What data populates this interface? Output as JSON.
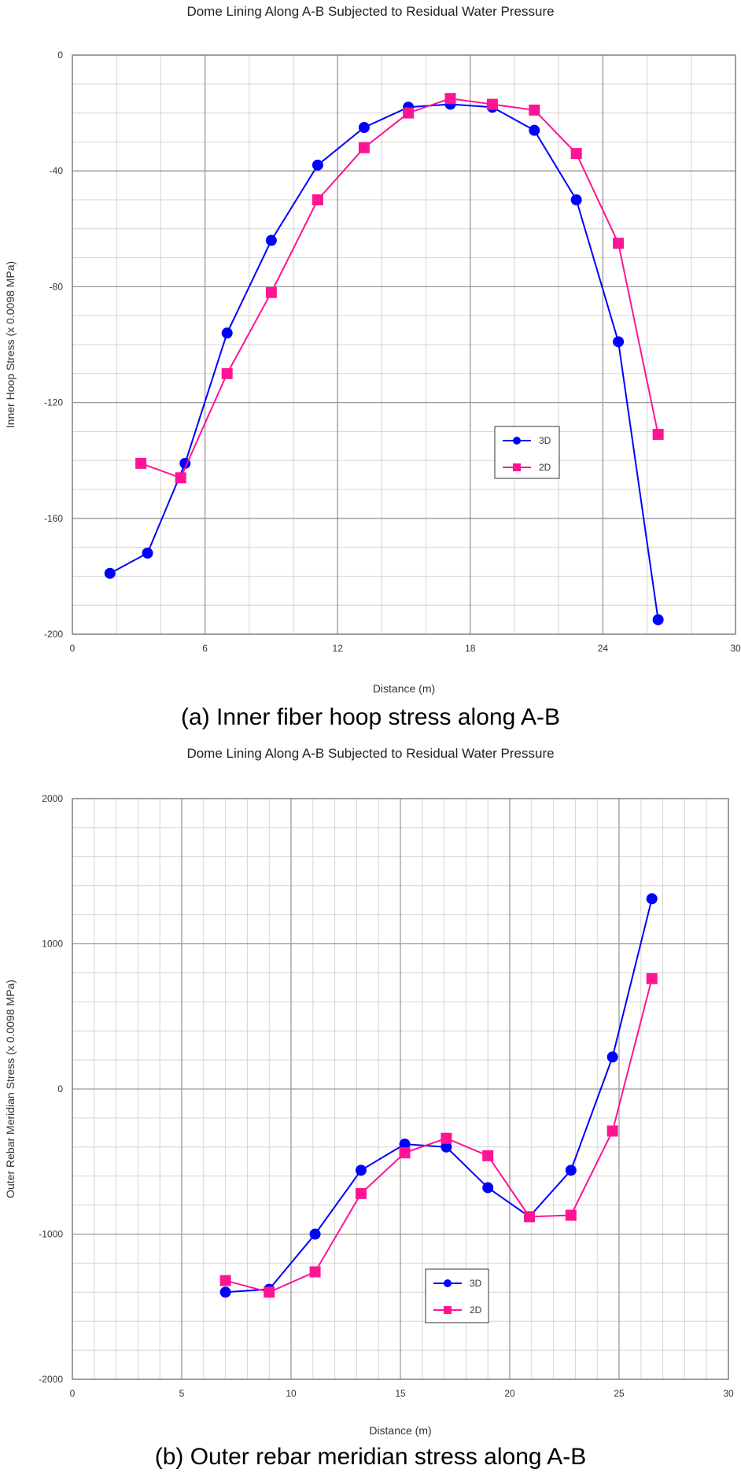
{
  "chart_data": [
    {
      "type": "line",
      "title": "Dome Lining Along A-B  Subjected to Residual Water Pressure",
      "xlabel": "Distance (m)",
      "ylabel": "Inner Hoop Stress (x 0.0098 MPa)",
      "xlim": [
        0,
        30
      ],
      "ylim": [
        -200,
        0
      ],
      "x_ticks": [
        0,
        6,
        12,
        18,
        24,
        30
      ],
      "y_ticks": [
        0,
        -40,
        -80,
        -120,
        -160,
        -200
      ],
      "grid": true,
      "legend_position": "center-right",
      "caption": "(a) Inner fiber hoop stress along A-B",
      "series": [
        {
          "name": "3D",
          "color": "#0000ff",
          "marker": "circle",
          "x": [
            1.7,
            3.4,
            5.1,
            7.0,
            9.0,
            11.1,
            13.2,
            15.2,
            17.1,
            19.0,
            20.9,
            22.8,
            24.7,
            26.5
          ],
          "y": [
            -179,
            -172,
            -141,
            -96,
            -64,
            -38,
            -25,
            -18,
            -17,
            -18,
            -26,
            -50,
            -99,
            -195
          ]
        },
        {
          "name": "2D",
          "color": "#ff1493",
          "marker": "square",
          "x": [
            3.1,
            4.9,
            7.0,
            9.0,
            11.1,
            13.2,
            15.2,
            17.1,
            19.0,
            20.9,
            22.8,
            24.7,
            26.5
          ],
          "y": [
            -141,
            -146,
            -110,
            -82,
            -50,
            -32,
            -20,
            -15,
            -17,
            -19,
            -34,
            -65,
            -131
          ]
        }
      ]
    },
    {
      "type": "line",
      "title": "Dome Lining Along A-B  Subjected to Residual Water Pressure",
      "xlabel": "Distance (m)",
      "ylabel": "Outer Rebar Meridian Stress (x 0.0098 MPa)",
      "xlim": [
        0,
        30
      ],
      "ylim": [
        -2000,
        2000
      ],
      "x_ticks": [
        0,
        5,
        10,
        15,
        20,
        25,
        30
      ],
      "y_ticks": [
        2000,
        1000,
        0,
        -1000,
        -2000
      ],
      "grid": true,
      "legend_position": "bottom-center",
      "caption": "(b) Outer rebar meridian stress along A-B",
      "series": [
        {
          "name": "3D",
          "color": "#0000ff",
          "marker": "circle",
          "x": [
            7.0,
            9.0,
            11.1,
            13.2,
            15.2,
            17.1,
            19.0,
            20.9,
            22.8,
            24.7,
            26.5
          ],
          "y": [
            -1400,
            -1380,
            -1000,
            -560,
            -380,
            -400,
            -680,
            -880,
            -560,
            220,
            1310
          ]
        },
        {
          "name": "2D",
          "color": "#ff1493",
          "marker": "square",
          "x": [
            7.0,
            9.0,
            11.1,
            13.2,
            15.2,
            17.1,
            19.0,
            20.9,
            22.8,
            24.7,
            26.5
          ],
          "y": [
            -1320,
            -1400,
            -1260,
            -720,
            -440,
            -340,
            -460,
            -880,
            -870,
            -290,
            760
          ]
        }
      ]
    }
  ]
}
